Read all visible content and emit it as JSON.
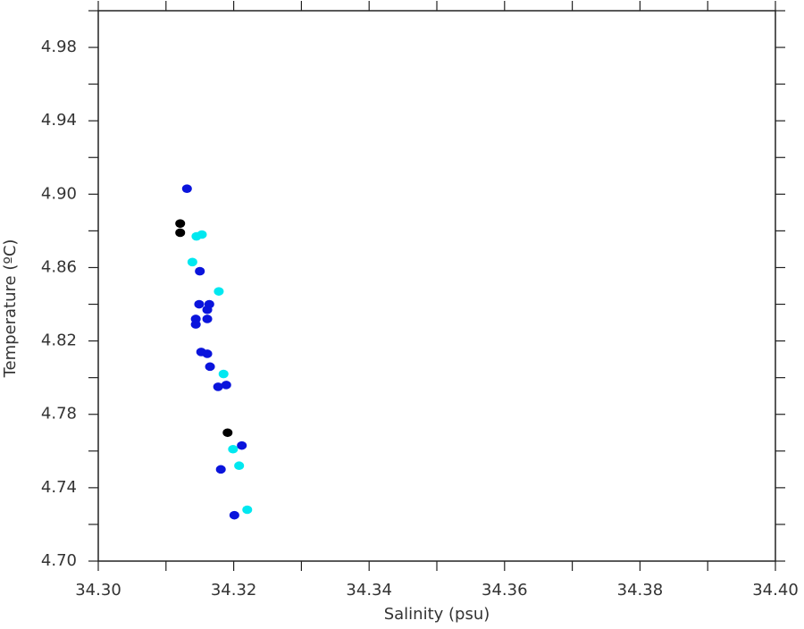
{
  "chart_data": {
    "type": "scatter",
    "xlabel": "Salinity (psu)",
    "ylabel": "Temperature (ºC)",
    "xlim": [
      34.3,
      34.4
    ],
    "ylim": [
      4.7,
      5.0
    ],
    "xticks": [
      {
        "value": 34.3,
        "label": "34.30"
      },
      {
        "value": 34.32,
        "label": "34.32"
      },
      {
        "value": 34.34,
        "label": "34.34"
      },
      {
        "value": 34.36,
        "label": "34.36"
      },
      {
        "value": 34.38,
        "label": "34.38"
      },
      {
        "value": 34.4,
        "label": "34.40"
      }
    ],
    "xminorticks": [
      34.31,
      34.33,
      34.35,
      34.37,
      34.39
    ],
    "yticks": [
      {
        "value": 4.7,
        "label": "4.70"
      },
      {
        "value": 4.74,
        "label": "4.74"
      },
      {
        "value": 4.78,
        "label": "4.78"
      },
      {
        "value": 4.82,
        "label": "4.82"
      },
      {
        "value": 4.86,
        "label": "4.86"
      },
      {
        "value": 4.9,
        "label": "4.90"
      },
      {
        "value": 4.94,
        "label": "4.94"
      },
      {
        "value": 4.98,
        "label": "4.98"
      }
    ],
    "yminorticks": [
      4.72,
      4.76,
      4.8,
      4.84,
      4.88,
      4.92,
      4.96,
      5.0
    ],
    "series": [
      {
        "color": "#0a14dc",
        "x": [
          34.3131,
          34.315,
          34.3149,
          34.3164,
          34.3161,
          34.3144,
          34.3161,
          34.3144,
          34.3152,
          34.3161,
          34.3165,
          34.3177,
          34.3189,
          34.3212,
          34.3181,
          34.3201
        ],
        "values": [
          4.903,
          4.858,
          4.84,
          4.84,
          4.837,
          4.832,
          4.832,
          4.829,
          4.814,
          4.813,
          4.806,
          4.795,
          4.796,
          4.763,
          4.75,
          4.725
        ]
      },
      {
        "color": "#00e8f0",
        "x": [
          34.3145,
          34.3153,
          34.3139,
          34.3178,
          34.3185,
          34.3199,
          34.3208,
          34.322
        ],
        "values": [
          4.877,
          4.878,
          4.863,
          4.847,
          4.802,
          4.761,
          4.752,
          4.728
        ]
      },
      {
        "color": "#000000",
        "x": [
          34.3121,
          34.3121,
          34.3191
        ],
        "values": [
          4.884,
          4.879,
          4.77
        ]
      }
    ]
  }
}
